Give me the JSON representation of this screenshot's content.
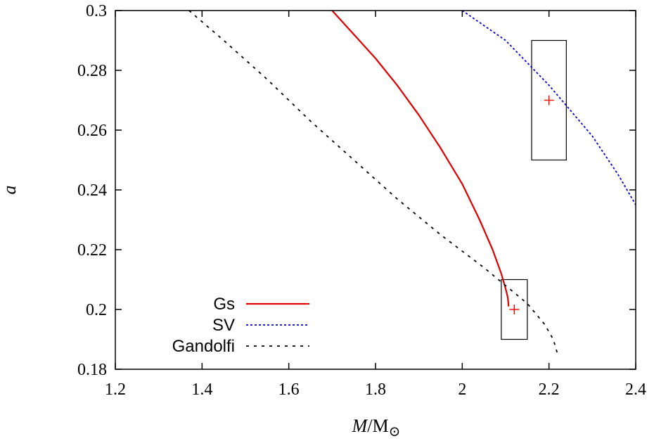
{
  "chart_data": {
    "type": "line",
    "xlabel": "M/M⊙",
    "ylabel": "a",
    "xlim": [
      1.2,
      2.4
    ],
    "ylim": [
      0.18,
      0.3
    ],
    "x_ticks": [
      "1.2",
      "1.4",
      "1.6",
      "1.8",
      "2",
      "2.2",
      "2.4"
    ],
    "y_ticks": [
      "0.18",
      "0.2",
      "0.22",
      "0.24",
      "0.26",
      "0.28",
      "0.3"
    ],
    "x_tick_values": [
      1.2,
      1.4,
      1.6,
      1.8,
      2.0,
      2.2,
      2.4
    ],
    "y_tick_values": [
      0.18,
      0.2,
      0.22,
      0.24,
      0.26,
      0.28,
      0.3
    ],
    "grid": false,
    "legend_position": "bottom-left",
    "series": [
      {
        "name": "Gs",
        "color": "#e00000",
        "style": "solid",
        "points": [
          [
            1.7,
            0.3
          ],
          [
            1.75,
            0.292
          ],
          [
            1.8,
            0.284
          ],
          [
            1.85,
            0.275
          ],
          [
            1.9,
            0.265
          ],
          [
            1.95,
            0.254
          ],
          [
            2.0,
            0.242
          ],
          [
            2.04,
            0.23
          ],
          [
            2.07,
            0.22
          ],
          [
            2.09,
            0.212
          ],
          [
            2.1,
            0.207
          ],
          [
            2.105,
            0.204
          ],
          [
            2.107,
            0.201
          ]
        ]
      },
      {
        "name": "SV",
        "color": "#0000d0",
        "style": "dotted",
        "points": [
          [
            2.0,
            0.3
          ],
          [
            2.1,
            0.29
          ],
          [
            2.2,
            0.275
          ],
          [
            2.3,
            0.258
          ],
          [
            2.36,
            0.245
          ],
          [
            2.4,
            0.235
          ]
        ]
      },
      {
        "name": "Gandolfi",
        "color": "#000000",
        "style": "dashed",
        "points": [
          [
            1.37,
            0.3
          ],
          [
            1.45,
            0.29
          ],
          [
            1.55,
            0.277
          ],
          [
            1.65,
            0.263
          ],
          [
            1.75,
            0.25
          ],
          [
            1.85,
            0.237
          ],
          [
            1.95,
            0.225
          ],
          [
            2.05,
            0.214
          ],
          [
            2.1,
            0.208
          ],
          [
            2.15,
            0.202
          ],
          [
            2.19,
            0.195
          ],
          [
            2.21,
            0.19
          ],
          [
            2.22,
            0.185
          ]
        ]
      }
    ],
    "markers": [
      {
        "x": 2.12,
        "y": 0.2,
        "color": "#ff0000",
        "symbol": "+"
      },
      {
        "x": 2.2,
        "y": 0.27,
        "color": "#ff0000",
        "symbol": "+"
      }
    ],
    "error_boxes": [
      {
        "x_range": [
          2.09,
          2.15
        ],
        "y_range": [
          0.19,
          0.21
        ]
      },
      {
        "x_range": [
          2.16,
          2.24
        ],
        "y_range": [
          0.25,
          0.29
        ]
      }
    ]
  }
}
